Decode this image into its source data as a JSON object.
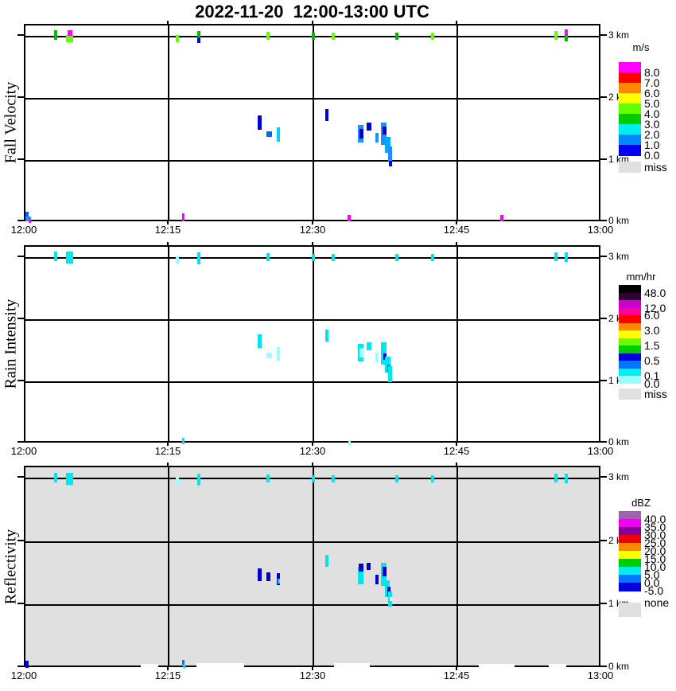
{
  "title": "2022-11-20  12:00-13:00 UTC",
  "x_axis": {
    "ticks": [
      "12:00",
      "12:15",
      "12:30",
      "12:45",
      "13:00"
    ]
  },
  "y_axis": {
    "ticks": [
      "3 km",
      "2 km",
      "1 km",
      "0 km"
    ]
  },
  "panels": [
    {
      "ylabel": "Fall Velocity",
      "background": "#ffffff",
      "legend": {
        "title": "m/s",
        "entries": [
          {
            "color": "#ff00ff",
            "label": "8.0"
          },
          {
            "color": "#ff0000",
            "label": "7.0"
          },
          {
            "color": "#ff8800",
            "label": "6.0"
          },
          {
            "color": "#ffff00",
            "label": "5.0"
          },
          {
            "color": "#66ff00",
            "label": "4.0"
          },
          {
            "color": "#00cc00",
            "label": "3.0"
          },
          {
            "color": "#00eeee",
            "label": "2.0"
          },
          {
            "color": "#0088ff",
            "label": "1.0"
          },
          {
            "color": "#0000ee",
            "label": "0.0"
          }
        ],
        "missing": {
          "color": "#e0e0e0",
          "label": "miss"
        }
      },
      "marks": [
        [
          36,
          6,
          4,
          12,
          "#00bb00"
        ],
        [
          51,
          12,
          9,
          9,
          "#66ff00"
        ],
        [
          53,
          6,
          6,
          7,
          "#ff00ff"
        ],
        [
          189,
          12,
          4,
          9,
          "#66ff00"
        ],
        [
          216,
          7,
          4,
          8,
          "#00bb00"
        ],
        [
          216,
          15,
          4,
          7,
          "#0000dd"
        ],
        [
          303,
          8,
          4,
          10,
          "#66ff00"
        ],
        [
          360,
          9,
          4,
          9,
          "#00bb00"
        ],
        [
          385,
          9,
          4,
          9,
          "#66ff00"
        ],
        [
          465,
          9,
          4,
          9,
          "#00bb00"
        ],
        [
          510,
          9,
          4,
          9,
          "#66ff00"
        ],
        [
          665,
          7,
          4,
          11,
          "#66ff00"
        ],
        [
          678,
          5,
          4,
          7,
          "#ff00ff"
        ],
        [
          678,
          12,
          4,
          8,
          "#00bb00"
        ],
        [
          292,
          113,
          5,
          18,
          "#0000dd"
        ],
        [
          303,
          133,
          7,
          7,
          "#0066ff"
        ],
        [
          316,
          128,
          4,
          18,
          "#00cfff"
        ],
        [
          377,
          105,
          4,
          15,
          "#0000dd"
        ],
        [
          418,
          125,
          7,
          22,
          "#1e90ff"
        ],
        [
          420,
          130,
          5,
          12,
          "#0000cc"
        ],
        [
          429,
          122,
          6,
          10,
          "#0000dd"
        ],
        [
          440,
          135,
          4,
          12,
          "#1e90ff"
        ],
        [
          447,
          122,
          7,
          28,
          "#1e90ff"
        ],
        [
          449,
          127,
          5,
          10,
          "#0000cc"
        ],
        [
          452,
          140,
          7,
          20,
          "#00aaff"
        ],
        [
          456,
          152,
          5,
          20,
          "#1e90ff"
        ],
        [
          457,
          170,
          4,
          7,
          "#0000dd"
        ],
        [
          0,
          234,
          4,
          8,
          "#0066ff"
        ],
        [
          0,
          240,
          7,
          6,
          "#1e90ff"
        ],
        [
          4,
          244,
          3,
          4,
          "#ff00ff"
        ],
        [
          197,
          236,
          3,
          10,
          "#ff00ff"
        ],
        [
          405,
          238,
          4,
          8,
          "#ff00ff"
        ],
        [
          597,
          238,
          4,
          8,
          "#ff00ff"
        ]
      ]
    },
    {
      "ylabel": "Rain Intensity",
      "background": "#ffffff",
      "legend": {
        "title": "mm/hr",
        "entries": [
          {
            "color": "#000000",
            "label": "48.0"
          },
          {
            "color": "#330033",
            "label": ""
          },
          {
            "color": "#cc00cc",
            "label": "12.0"
          },
          {
            "color": "#ff0099",
            "label": "6.0"
          },
          {
            "color": "#ff0000",
            "label": ""
          },
          {
            "color": "#ff8800",
            "label": "3.0"
          },
          {
            "color": "#ffff00",
            "label": ""
          },
          {
            "color": "#66ff00",
            "label": "1.5"
          },
          {
            "color": "#00cc00",
            "label": ""
          },
          {
            "color": "#0000dd",
            "label": "0.5"
          },
          {
            "color": "#0077ff",
            "label": ""
          },
          {
            "color": "#00eeee",
            "label": "0.1"
          },
          {
            "color": "#99ffff",
            "label": "0.0"
          }
        ],
        "missing": {
          "color": "#e0e0e0",
          "label": "miss"
        }
      },
      "marks": [
        [
          36,
          6,
          4,
          12,
          "#00e5ee"
        ],
        [
          51,
          6,
          9,
          15,
          "#00e5ee"
        ],
        [
          189,
          12,
          4,
          9,
          "#99ffff"
        ],
        [
          216,
          7,
          4,
          15,
          "#00e5ee"
        ],
        [
          303,
          8,
          4,
          10,
          "#00e5ee"
        ],
        [
          360,
          9,
          4,
          9,
          "#00e5ee"
        ],
        [
          385,
          9,
          4,
          9,
          "#00e5ee"
        ],
        [
          465,
          9,
          4,
          9,
          "#00e5ee"
        ],
        [
          510,
          9,
          4,
          9,
          "#00e5ee"
        ],
        [
          665,
          7,
          4,
          11,
          "#00e5ee"
        ],
        [
          678,
          7,
          4,
          12,
          "#00e5ee"
        ],
        [
          292,
          110,
          5,
          17,
          "#00e5ee"
        ],
        [
          303,
          133,
          7,
          7,
          "#99ffff"
        ],
        [
          316,
          126,
          4,
          17,
          "#99ffff"
        ],
        [
          377,
          104,
          4,
          15,
          "#00e5ee"
        ],
        [
          418,
          122,
          7,
          22,
          "#00e5ee"
        ],
        [
          420,
          127,
          5,
          12,
          "#99ffff"
        ],
        [
          429,
          120,
          6,
          10,
          "#00e5ee"
        ],
        [
          440,
          133,
          4,
          12,
          "#99ffff"
        ],
        [
          447,
          120,
          7,
          28,
          "#00e5ee"
        ],
        [
          450,
          134,
          4,
          8,
          "#0000dd"
        ],
        [
          452,
          138,
          7,
          20,
          "#00e5ee"
        ],
        [
          455,
          148,
          4,
          10,
          "#0077ff"
        ],
        [
          456,
          150,
          5,
          20,
          "#00e5ee"
        ],
        [
          197,
          240,
          3,
          8,
          "#00e5ee"
        ],
        [
          406,
          243,
          3,
          6,
          "#99ffff"
        ]
      ]
    },
    {
      "ylabel": "Reflectivity",
      "background": "#e0e0e0",
      "legend": {
        "title": "dBZ",
        "entries": [
          {
            "color": "#9966aa",
            "label": "40.0"
          },
          {
            "color": "#ee00ee",
            "label": "35.0"
          },
          {
            "color": "#880099",
            "label": "30.0"
          },
          {
            "color": "#ee0000",
            "label": "25.0"
          },
          {
            "color": "#ff8800",
            "label": "20.0"
          },
          {
            "color": "#ffff00",
            "label": "15.0"
          },
          {
            "color": "#00cc00",
            "label": "10.0"
          },
          {
            "color": "#00eeee",
            "label": "5.0"
          },
          {
            "color": "#0077ff",
            "label": "0.0"
          },
          {
            "color": "#0000dd",
            "label": "-5.0"
          }
        ],
        "missing": {
          "color": "#e0e0e0",
          "label": "none"
        }
      },
      "marks": [
        [
          36,
          7,
          4,
          12,
          "#00e5ee"
        ],
        [
          51,
          7,
          9,
          15,
          "#00e5ee"
        ],
        [
          189,
          13,
          4,
          9,
          "#99ffff"
        ],
        [
          216,
          8,
          4,
          15,
          "#00e5ee"
        ],
        [
          303,
          9,
          4,
          10,
          "#00e5ee"
        ],
        [
          360,
          10,
          4,
          9,
          "#00e5ee"
        ],
        [
          385,
          10,
          4,
          9,
          "#00e5ee"
        ],
        [
          465,
          10,
          4,
          9,
          "#00e5ee"
        ],
        [
          510,
          10,
          4,
          9,
          "#00e5ee"
        ],
        [
          665,
          8,
          4,
          11,
          "#00e5ee"
        ],
        [
          678,
          8,
          4,
          12,
          "#00e5ee"
        ],
        [
          292,
          127,
          5,
          16,
          "#0000cc"
        ],
        [
          303,
          132,
          5,
          11,
          "#0000cc"
        ],
        [
          316,
          133,
          4,
          15,
          "#0000cc"
        ],
        [
          317,
          140,
          3,
          6,
          "#00e5ee"
        ],
        [
          377,
          110,
          4,
          15,
          "#00e5ee"
        ],
        [
          418,
          125,
          7,
          22,
          "#00e5ee"
        ],
        [
          419,
          121,
          6,
          10,
          "#0000cc"
        ],
        [
          429,
          120,
          5,
          9,
          "#0000cc"
        ],
        [
          440,
          135,
          4,
          12,
          "#0000cc"
        ],
        [
          447,
          120,
          7,
          29,
          "#00e5ee"
        ],
        [
          449,
          125,
          5,
          12,
          "#0000cc"
        ],
        [
          452,
          142,
          6,
          21,
          "#00e5ee"
        ],
        [
          455,
          150,
          4,
          12,
          "#0000cc"
        ],
        [
          456,
          156,
          5,
          19,
          "#00e5ee"
        ],
        [
          458,
          163,
          3,
          5,
          "#ffffff"
        ],
        [
          0,
          243,
          4,
          9,
          "#0000dd"
        ],
        [
          197,
          242,
          3,
          6,
          "#0077ff"
        ],
        [
          198,
          248,
          3,
          4,
          "#00e5ee"
        ],
        [
          145,
          247,
          22,
          5,
          "#ffffff"
        ],
        [
          215,
          246,
          60,
          6,
          "#ffffff"
        ],
        [
          388,
          246,
          45,
          6,
          "#ffffff"
        ],
        [
          570,
          247,
          45,
          5,
          "#ffffff"
        ],
        [
          658,
          247,
          22,
          5,
          "#ffffff"
        ]
      ]
    }
  ],
  "chart_data": [
    {
      "type": "heatmap",
      "title": "Fall Velocity",
      "units": "m/s",
      "x_range": [
        "12:00",
        "13:00"
      ],
      "x_ticks": [
        "12:00",
        "12:15",
        "12:30",
        "12:45",
        "13:00"
      ],
      "y_ticks": [
        "0 km",
        "1 km",
        "2 km",
        "3 km"
      ],
      "y_max_km": 3.18,
      "grid": true,
      "legend_position": "right",
      "legend_bins_mps": [
        8.0,
        7.0,
        6.0,
        5.0,
        4.0,
        3.0,
        2.0,
        1.0,
        0.0
      ],
      "missing_label": "miss",
      "features": [
        {
          "time": "12:03-12:05",
          "height_km": 3.1,
          "value": "3-5 m/s specks, one 8+ m/s fleck"
        },
        {
          "time": "12:16-12:40 scattered",
          "height_km": 3.1,
          "value": "3-5 m/s specks"
        },
        {
          "time": "12:55-12:56",
          "height_km": 3.1,
          "value": "3-5 m/s and 8+ m/s flecks"
        },
        {
          "time": "12:24-12:29",
          "height_km": "1.4-1.8",
          "value": "0-2 m/s streaks"
        },
        {
          "time": "12:31",
          "height_km": "1.7-1.9",
          "value": "0-1 m/s streak"
        },
        {
          "time": "12:34-12:38",
          "height_km": "1.0-1.8",
          "value": "0-2 m/s descending cluster"
        },
        {
          "time": "12:00",
          "height_km": "0.0-0.2",
          "value": "0-2 m/s blob with 8+ m/s fleck"
        },
        {
          "time": "12:16, 12:34, 12:50",
          "height_km": "0.0-0.1",
          "value": "8+ m/s magenta flecks"
        }
      ]
    },
    {
      "type": "heatmap",
      "title": "Rain Intensity",
      "units": "mm/hr",
      "x_range": [
        "12:00",
        "13:00"
      ],
      "x_ticks": [
        "12:00",
        "12:15",
        "12:30",
        "12:45",
        "13:00"
      ],
      "y_ticks": [
        "0 km",
        "1 km",
        "2 km",
        "3 km"
      ],
      "y_max_km": 3.18,
      "grid": true,
      "legend_position": "right",
      "legend_bins_mmhr": [
        48.0,
        12.0,
        6.0,
        3.0,
        1.5,
        0.5,
        0.1,
        0.0
      ],
      "missing_label": "miss",
      "features": [
        {
          "time": "12:03-12:56 scattered",
          "height_km": 3.1,
          "value": "0.0-0.1 mm/hr cyan specks"
        },
        {
          "time": "12:24-12:29",
          "height_km": "1.4-1.8",
          "value": "0.0-0.1 mm/hr streaks"
        },
        {
          "time": "12:31",
          "height_km": "1.7-1.9",
          "value": "0.1 mm/hr streak"
        },
        {
          "time": "12:34-12:38",
          "height_km": "1.0-1.8",
          "value": "0.0-0.5 mm/hr cluster with 0.5 mm/hr core"
        },
        {
          "time": "12:16, 12:33",
          "height_km": "0.0-0.1",
          "value": "0.0-0.1 mm/hr specks"
        }
      ]
    },
    {
      "type": "heatmap",
      "title": "Reflectivity",
      "units": "dBZ",
      "x_range": [
        "12:00",
        "13:00"
      ],
      "x_ticks": [
        "12:00",
        "12:15",
        "12:30",
        "12:45",
        "13:00"
      ],
      "y_ticks": [
        "0 km",
        "1 km",
        "2 km",
        "3 km"
      ],
      "y_max_km": 3.18,
      "grid": true,
      "legend_position": "right",
      "legend_bins_dbz": [
        40.0,
        35.0,
        30.0,
        25.0,
        20.0,
        15.0,
        10.0,
        5.0,
        0.0,
        -5.0
      ],
      "missing_label": "none",
      "background_value": "none (gray fill over whole panel)",
      "features": [
        {
          "time": "12:03-12:56 scattered",
          "height_km": 3.1,
          "value": "5-10 dBZ cyan specks"
        },
        {
          "time": "12:24-12:29",
          "height_km": "1.4-1.8",
          "value": "-5-0 dBZ streaks"
        },
        {
          "time": "12:31",
          "height_km": "1.7-1.9",
          "value": "5-10 dBZ streak"
        },
        {
          "time": "12:34-12:38",
          "height_km": "1.0-1.8",
          "value": "-5-10 dBZ descending cluster"
        },
        {
          "time": "12:00, 12:16",
          "height_km": "0.0-0.1",
          "value": "-5-5 dBZ specks"
        },
        {
          "time": "scattered along bottom",
          "height_km": "0.0-0.05",
          "value": "white (no echo) patches"
        }
      ]
    }
  ]
}
